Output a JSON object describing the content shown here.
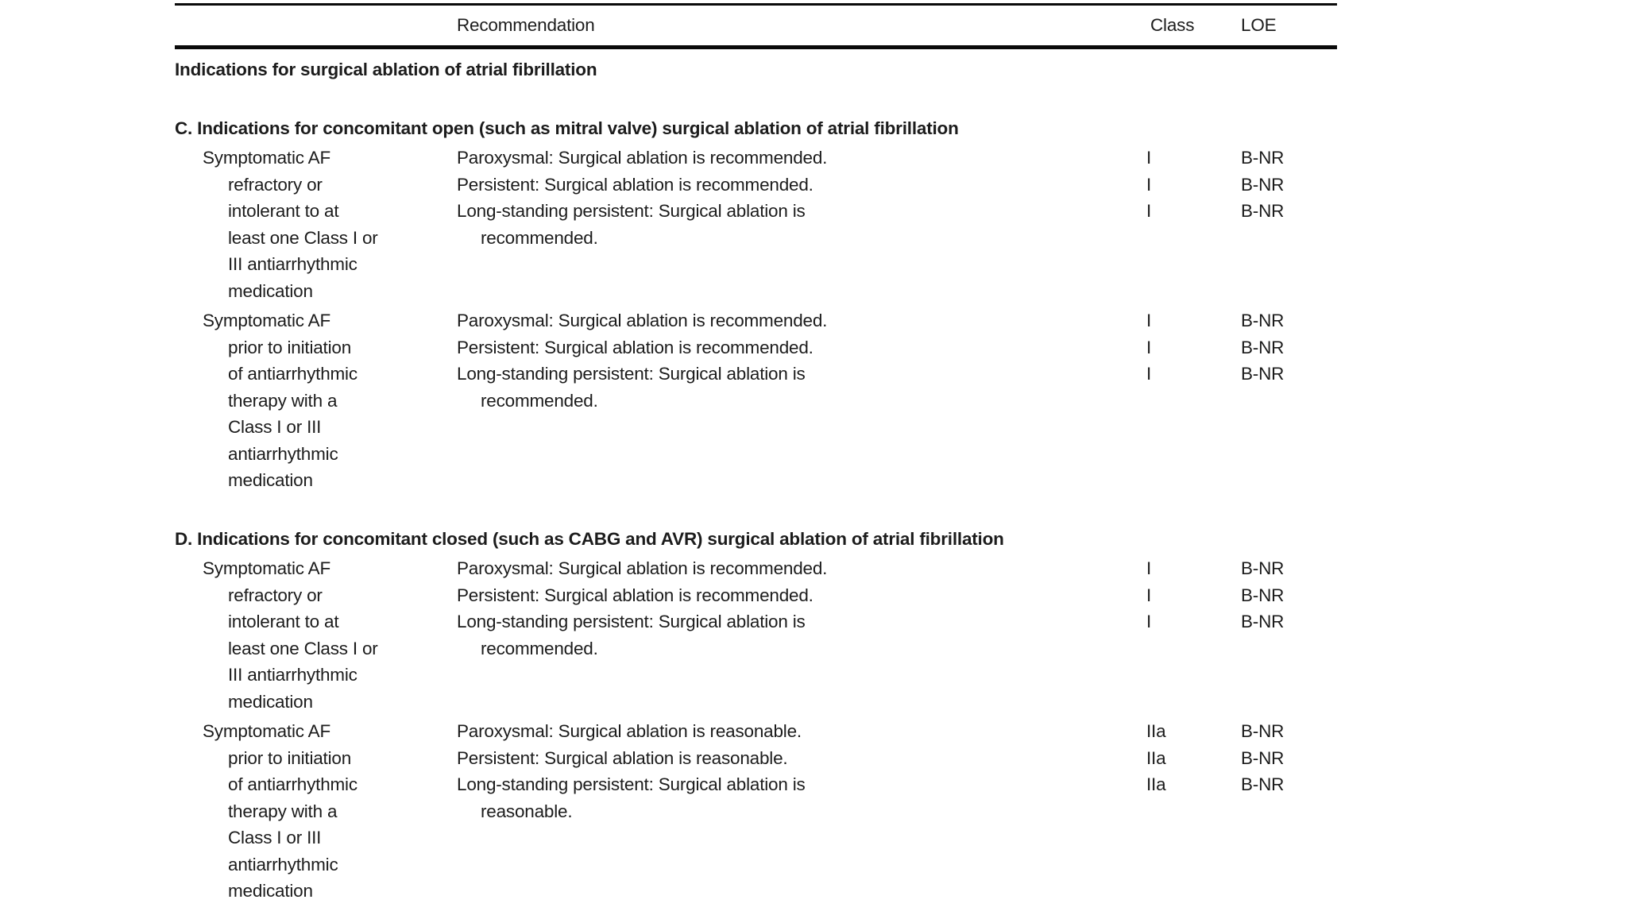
{
  "table": {
    "header": {
      "recommendation": "Recommendation",
      "class": "Class",
      "loe": "LOE"
    },
    "title": "Indications for surgical ablation of atrial fibrillation",
    "sections": [
      {
        "heading": "C. Indications for concomitant open (such as mitral valve) surgical ablation of atrial fibrillation",
        "rows": [
          {
            "indication": "Symptomatic AF\nrefractory or\nintolerant to at\nleast one Class I or\nIII antiarrhythmic\nmedication",
            "entries": [
              {
                "recommendation": "Paroxysmal: Surgical ablation is recommended.",
                "class": "I",
                "loe": "B-NR"
              },
              {
                "recommendation": "Persistent: Surgical ablation is recommended.",
                "class": "I",
                "loe": "B-NR"
              },
              {
                "recommendation": "Long-standing persistent: Surgical ablation is\nrecommended.",
                "class": "I",
                "loe": "B-NR"
              }
            ]
          },
          {
            "indication": "Symptomatic AF\nprior to initiation\nof antiarrhythmic\ntherapy with a\nClass I or III\nantiarrhythmic\nmedication",
            "entries": [
              {
                "recommendation": "Paroxysmal: Surgical ablation is recommended.",
                "class": "I",
                "loe": "B-NR"
              },
              {
                "recommendation": "Persistent: Surgical ablation is recommended.",
                "class": "I",
                "loe": "B-NR"
              },
              {
                "recommendation": "Long-standing persistent: Surgical ablation is\nrecommended.",
                "class": "I",
                "loe": "B-NR"
              }
            ]
          }
        ]
      },
      {
        "heading": "D. Indications for concomitant closed (such as CABG and AVR) surgical ablation of atrial fibrillation",
        "rows": [
          {
            "indication": "Symptomatic AF\nrefractory or\nintolerant to at\nleast one Class I or\nIII antiarrhythmic\nmedication",
            "entries": [
              {
                "recommendation": "Paroxysmal: Surgical ablation is recommended.",
                "class": "I",
                "loe": "B-NR"
              },
              {
                "recommendation": "Persistent: Surgical ablation is recommended.",
                "class": "I",
                "loe": "B-NR"
              },
              {
                "recommendation": "Long-standing persistent: Surgical ablation is\nrecommended.",
                "class": "I",
                "loe": "B-NR"
              }
            ]
          },
          {
            "indication": "Symptomatic AF\nprior to initiation\nof antiarrhythmic\ntherapy with a\nClass I or III\nantiarrhythmic\nmedication",
            "entries": [
              {
                "recommendation": "Paroxysmal: Surgical ablation is reasonable.",
                "class": "IIa",
                "loe": "B-NR"
              },
              {
                "recommendation": "Persistent: Surgical ablation is reasonable.",
                "class": "IIa",
                "loe": "B-NR"
              },
              {
                "recommendation": "Long-standing persistent: Surgical ablation is\nreasonable.",
                "class": "IIa",
                "loe": "B-NR"
              }
            ]
          }
        ]
      }
    ]
  }
}
